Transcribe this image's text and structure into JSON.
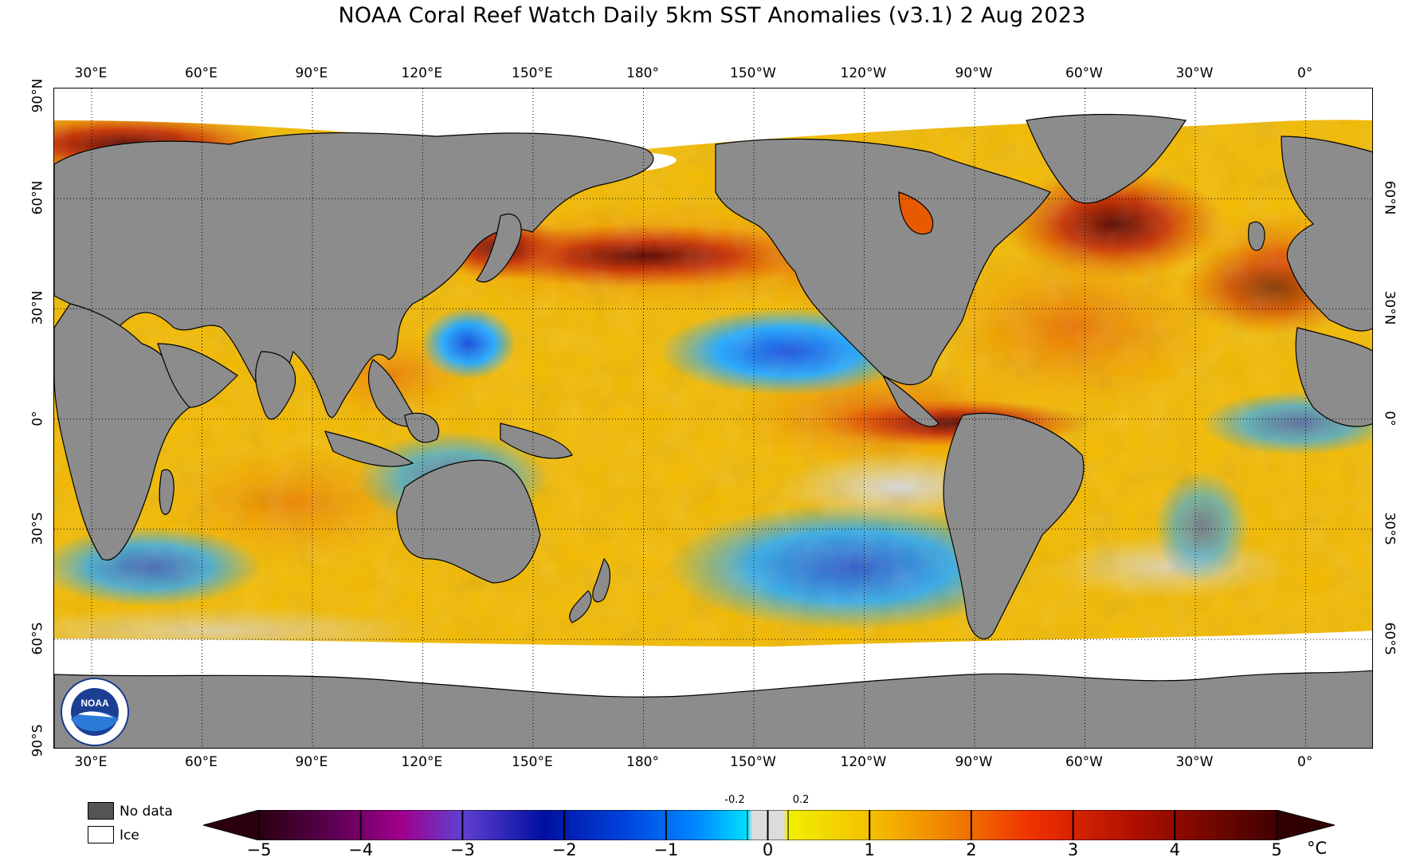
{
  "title": "NOAA Coral Reef Watch Daily 5km SST Anomalies  (v3.1)   2 Aug 2023",
  "lon_labels": [
    "30°E",
    "60°E",
    "90°E",
    "120°E",
    "150°E",
    "180°",
    "150°W",
    "120°W",
    "90°W",
    "60°W",
    "30°W",
    "0°"
  ],
  "lat_labels_left": [
    "90°N",
    "60°N",
    "30°N",
    "0°",
    "30°S",
    "60°S",
    "90°S"
  ],
  "lat_labels_right": [
    "60°N",
    "30°N",
    "0°",
    "30°S",
    "60°S"
  ],
  "legend": {
    "no_data": "No data",
    "ice": "Ice"
  },
  "colors": {
    "land": "#8c8c8c",
    "no_data": "#555555",
    "ice": "#ffffff",
    "ocean_warm": "#f5c400",
    "ocean_hot": "#e85a00",
    "ocean_extreme": "#7a1000",
    "ocean_neutral": "#d8d8d8",
    "ocean_cool": "#22aaff",
    "ocean_cold": "#1a55dd"
  },
  "colorbar": {
    "ticks": [
      "−5",
      "−4",
      "−3",
      "−2",
      "−1",
      "0",
      "1",
      "2",
      "3",
      "4",
      "5"
    ],
    "mini_ticks": [
      "-0.2",
      "0.2"
    ],
    "unit": "°C",
    "stops": [
      "#2a0010",
      "#5a0050",
      "#7a0090",
      "#3a20c0",
      "#0010a0",
      "#0044dd",
      "#0088ff",
      "#00d8ff",
      "#dcdcdc",
      "#f0f000",
      "#f5b000",
      "#f07000",
      "#e81000",
      "#a01000",
      "#300000"
    ]
  },
  "logo": {
    "name": "NOAA"
  }
}
